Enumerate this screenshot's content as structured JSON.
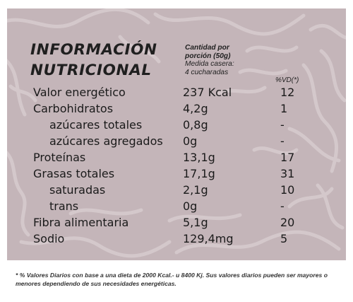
{
  "title": {
    "line1": "INFORMACIÓN",
    "line2": "NUTRICIONAL"
  },
  "portion": {
    "line1": "Cantidad por",
    "line2": "porción (50g)",
    "line3": "Medida casera:",
    "line4": "4 cucharadas"
  },
  "vd_header": "%VD(*)",
  "rows": [
    {
      "label": "Valor energético",
      "amount": "237 Kcal",
      "vd": "12",
      "sub": false
    },
    {
      "label": "Carbohidratos",
      "amount": "4,2g",
      "vd": "1",
      "sub": false
    },
    {
      "label": "azúcares totales",
      "amount": "0,8g",
      "vd": "-",
      "sub": true
    },
    {
      "label": "azúcares agregados",
      "amount": "0g",
      "vd": "-",
      "sub": true
    },
    {
      "label": "Proteínas",
      "amount": "13,1g",
      "vd": "17",
      "sub": false
    },
    {
      "label": "Grasas totales",
      "amount": "17,1g",
      "vd": "31",
      "sub": false
    },
    {
      "label": "saturadas",
      "amount": "2,1g",
      "vd": "10",
      "sub": true
    },
    {
      "label": "trans",
      "amount": "0g",
      "vd": "-",
      "sub": true
    },
    {
      "label": "Fibra alimentaria",
      "amount": "5,1g",
      "vd": "20",
      "sub": false
    },
    {
      "label": "Sodio",
      "amount": "129,4mg",
      "vd": "5",
      "sub": false
    }
  ],
  "footnote": "* % Valores Diarios con base a una dieta de 2000 Kcal.- u 8400 Kj. Sus valores diarios pueden ser mayores o menores dependiendo de sus necesidades energéticas.",
  "colors": {
    "panel": "#c4b5b9",
    "pattern": "#d6cacd",
    "text": "#1a1a1a"
  }
}
